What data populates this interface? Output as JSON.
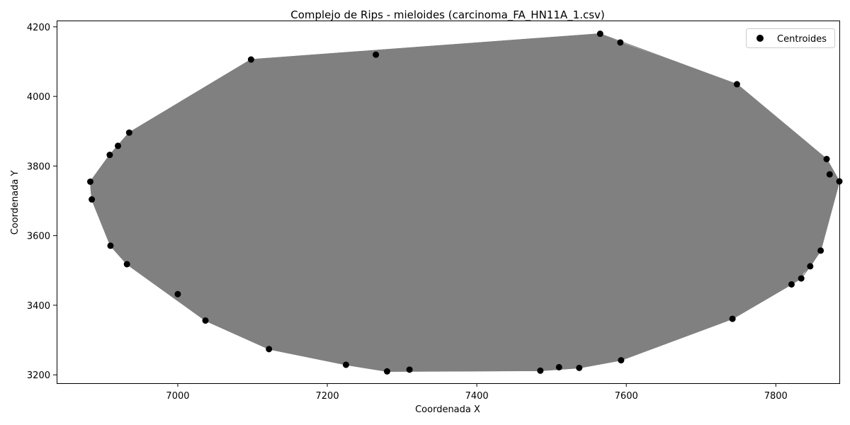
{
  "chart_data": {
    "type": "scatter",
    "title": "Complejo de Rips - mieloides (carcinoma_FA_HN11A_1.csv)",
    "xlabel": "Coordenada X",
    "ylabel": "Coordenada Y",
    "xlim": [
      6838,
      7885
    ],
    "ylim": [
      3176,
      4218
    ],
    "xticks": [
      7000,
      7200,
      7400,
      7600,
      7800
    ],
    "yticks": [
      3200,
      3400,
      3600,
      3800,
      4000,
      4200
    ],
    "grid": false,
    "legend": {
      "placement": "top-right",
      "entries": [
        "Centroides"
      ]
    },
    "colors": {
      "points": "#000000",
      "edges": "#808080",
      "frame": "#000000"
    },
    "series": [
      {
        "name": "Centroides",
        "points": [
          [
            7565,
            4180
          ],
          [
            7592,
            4155
          ],
          [
            7098,
            4106
          ],
          [
            7265,
            4120
          ],
          [
            7748,
            4035
          ],
          [
            6935,
            3896
          ],
          [
            6920,
            3858
          ],
          [
            6909,
            3832
          ],
          [
            7868,
            3820
          ],
          [
            7872,
            3776
          ],
          [
            7885,
            3756
          ],
          [
            6883,
            3755
          ],
          [
            6885,
            3704
          ],
          [
            6910,
            3571
          ],
          [
            7860,
            3557
          ],
          [
            6932,
            3518
          ],
          [
            7846,
            3512
          ],
          [
            7834,
            3477
          ],
          [
            7821,
            3460
          ],
          [
            7000,
            3432
          ],
          [
            7037,
            3356
          ],
          [
            7742,
            3361
          ],
          [
            7122,
            3274
          ],
          [
            7593,
            3242
          ],
          [
            7225,
            3229
          ],
          [
            7537,
            3220
          ],
          [
            7510,
            3222
          ],
          [
            7310,
            3215
          ],
          [
            7280,
            3210
          ],
          [
            7485,
            3212
          ]
        ],
        "hull": [
          [
            7565,
            4180
          ],
          [
            7592,
            4155
          ],
          [
            7748,
            4035
          ],
          [
            7868,
            3820
          ],
          [
            7885,
            3756
          ],
          [
            7860,
            3557
          ],
          [
            7846,
            3512
          ],
          [
            7821,
            3460
          ],
          [
            7742,
            3361
          ],
          [
            7593,
            3242
          ],
          [
            7537,
            3220
          ],
          [
            7485,
            3212
          ],
          [
            7280,
            3210
          ],
          [
            7225,
            3229
          ],
          [
            7122,
            3274
          ],
          [
            7037,
            3356
          ],
          [
            6932,
            3518
          ],
          [
            6910,
            3571
          ],
          [
            6885,
            3704
          ],
          [
            6883,
            3755
          ],
          [
            6909,
            3832
          ],
          [
            6935,
            3896
          ],
          [
            7098,
            4106
          ]
        ]
      }
    ]
  }
}
